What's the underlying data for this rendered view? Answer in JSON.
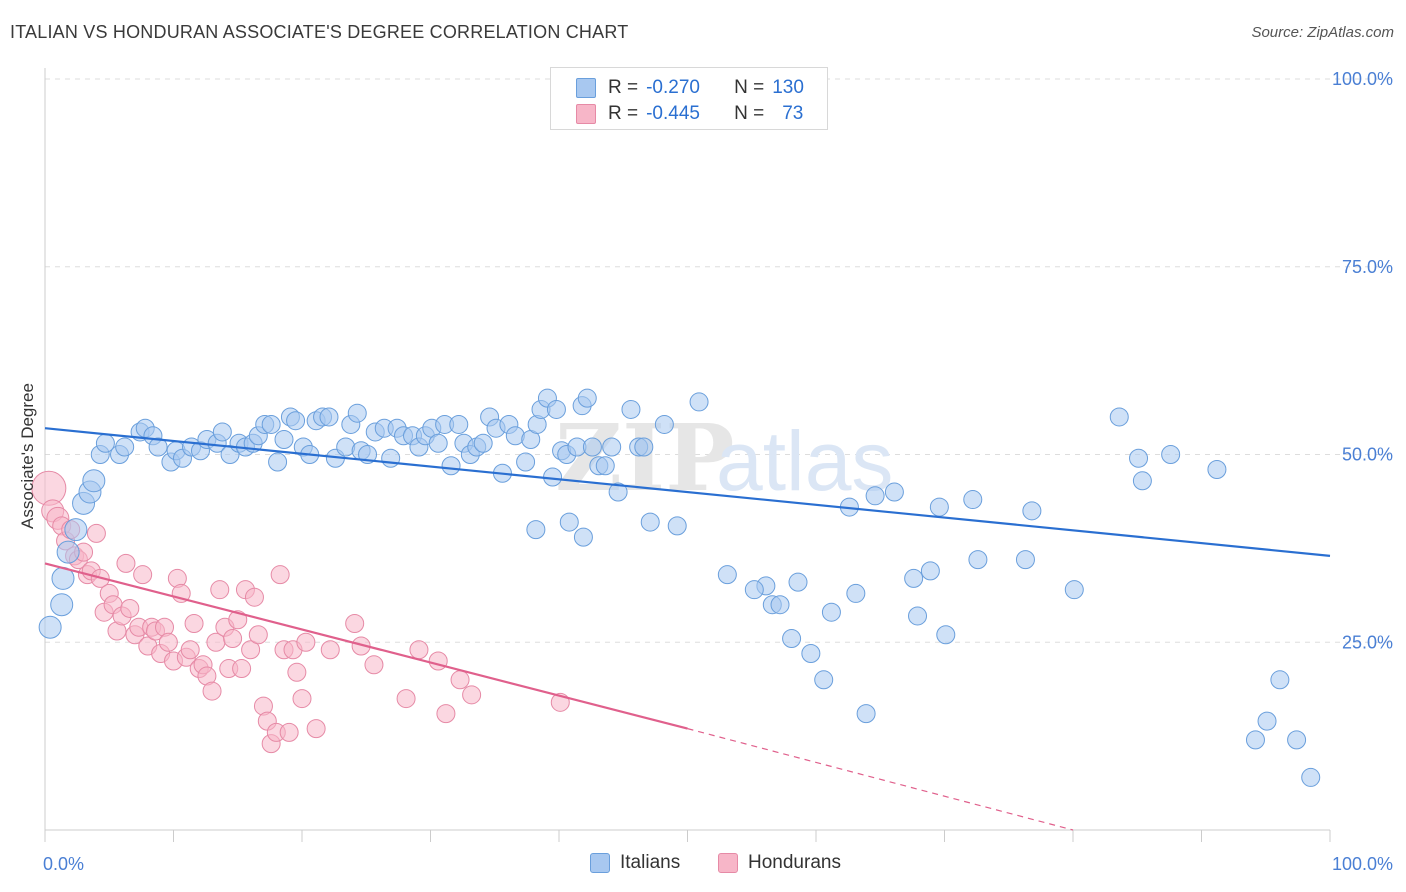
{
  "title": "ITALIAN VS HONDURAN ASSOCIATE'S DEGREE CORRELATION CHART",
  "source": "Source: ZipAtlas.com",
  "watermark": {
    "zip": "ZIP",
    "atlas": "atlas"
  },
  "colors": {
    "italians_fill": "#a8c8f0",
    "italians_stroke": "#6a9fdc",
    "italians_line": "#2a6fd1",
    "hondurans_fill": "#f7b6c8",
    "hondurans_stroke": "#e68aa6",
    "hondurans_line": "#e0608c",
    "tick_text": "#4a7fd4",
    "grid": "#dddddd"
  },
  "legend_top": [
    {
      "r_label": "R =",
      "r_value": "-0.270",
      "n_label": "N =",
      "n_value": "130"
    },
    {
      "r_label": "R =",
      "r_value": "-0.445",
      "n_label": "N =",
      "n_value": "73"
    }
  ],
  "legend_bottom": [
    "Italians",
    "Hondurans"
  ],
  "chart_data": {
    "type": "scatter",
    "title": "ITALIAN VS HONDURAN ASSOCIATE'S DEGREE CORRELATION CHART",
    "xlabel": "",
    "ylabel": "Associate's Degree",
    "xlim": [
      0,
      100
    ],
    "ylim": [
      0,
      100
    ],
    "x_tick_labels": [
      "0.0%",
      "100.0%"
    ],
    "y_tick_labels": [
      "25.0%",
      "50.0%",
      "75.0%",
      "100.0%"
    ],
    "y_ticks": [
      25,
      50,
      75,
      100
    ],
    "grid": true,
    "legend_position": "top-center",
    "series": [
      {
        "name": "Italians",
        "r": -0.27,
        "n": 130,
        "trend": {
          "x0": 0,
          "y0": 53.5,
          "x1": 100,
          "y1": 36.5
        },
        "points": [
          [
            0.4,
            27
          ],
          [
            1.3,
            30
          ],
          [
            1.4,
            33.5
          ],
          [
            1.8,
            37
          ],
          [
            2.4,
            40
          ],
          [
            3,
            43.5
          ],
          [
            3.5,
            45
          ],
          [
            3.8,
            46.5
          ],
          [
            4.3,
            50
          ],
          [
            4.7,
            51.5
          ],
          [
            5.8,
            50
          ],
          [
            6.2,
            51
          ],
          [
            7.4,
            53
          ],
          [
            7.8,
            53.5
          ],
          [
            8.4,
            52.5
          ],
          [
            8.8,
            51
          ],
          [
            9.8,
            49
          ],
          [
            10.2,
            50.5
          ],
          [
            10.7,
            49.5
          ],
          [
            11.4,
            51
          ],
          [
            12.1,
            50.5
          ],
          [
            12.6,
            52
          ],
          [
            13.4,
            51.5
          ],
          [
            13.8,
            53
          ],
          [
            14.4,
            50
          ],
          [
            15.1,
            51.5
          ],
          [
            15.6,
            51
          ],
          [
            16.2,
            51.5
          ],
          [
            16.6,
            52.5
          ],
          [
            17.1,
            54
          ],
          [
            17.6,
            54
          ],
          [
            18.1,
            49
          ],
          [
            18.6,
            52
          ],
          [
            19.1,
            55
          ],
          [
            19.5,
            54.5
          ],
          [
            20.1,
            51
          ],
          [
            20.6,
            50
          ],
          [
            21.1,
            54.5
          ],
          [
            21.6,
            55
          ],
          [
            22.1,
            55
          ],
          [
            22.6,
            49.5
          ],
          [
            23.4,
            51
          ],
          [
            23.8,
            54
          ],
          [
            24.3,
            55.5
          ],
          [
            24.6,
            50.5
          ],
          [
            25.1,
            50
          ],
          [
            25.7,
            53
          ],
          [
            26.4,
            53.5
          ],
          [
            26.9,
            49.5
          ],
          [
            27.4,
            53.5
          ],
          [
            27.9,
            52.5
          ],
          [
            28.6,
            52.5
          ],
          [
            29.1,
            51
          ],
          [
            29.6,
            52.5
          ],
          [
            30.1,
            53.5
          ],
          [
            30.6,
            51.5
          ],
          [
            31.1,
            54
          ],
          [
            31.6,
            48.5
          ],
          [
            32.2,
            54
          ],
          [
            32.6,
            51.5
          ],
          [
            33.1,
            50
          ],
          [
            33.6,
            51
          ],
          [
            34.1,
            51.5
          ],
          [
            34.6,
            55
          ],
          [
            35.1,
            53.5
          ],
          [
            35.6,
            47.5
          ],
          [
            36.1,
            54
          ],
          [
            36.6,
            52.5
          ],
          [
            37.4,
            49
          ],
          [
            37.8,
            52
          ],
          [
            38.3,
            54
          ],
          [
            38.6,
            56
          ],
          [
            39.1,
            57.5
          ],
          [
            39.5,
            47
          ],
          [
            39.8,
            56
          ],
          [
            40.2,
            50.5
          ],
          [
            40.6,
            50
          ],
          [
            41.4,
            51
          ],
          [
            41.8,
            56.5
          ],
          [
            42.2,
            57.5
          ],
          [
            42.6,
            51
          ],
          [
            43.1,
            48.5
          ],
          [
            43.6,
            48.5
          ],
          [
            44.1,
            51
          ],
          [
            44.6,
            45
          ],
          [
            45.6,
            56
          ],
          [
            46.2,
            51
          ],
          [
            46.6,
            51
          ],
          [
            47.1,
            41
          ],
          [
            48.2,
            54
          ],
          [
            49.2,
            40.5
          ],
          [
            50.9,
            57
          ],
          [
            38.2,
            40
          ],
          [
            40.8,
            41
          ],
          [
            41.9,
            39
          ],
          [
            56.1,
            32.5
          ],
          [
            56.6,
            30
          ],
          [
            57.2,
            30
          ],
          [
            58.1,
            25.5
          ],
          [
            59.6,
            23.5
          ],
          [
            60.6,
            20
          ],
          [
            63.1,
            31.5
          ],
          [
            63.9,
            15.5
          ],
          [
            67.6,
            33.5
          ],
          [
            67.9,
            28.5
          ],
          [
            68.9,
            34.5
          ],
          [
            70.1,
            26
          ],
          [
            72.6,
            36
          ],
          [
            76.3,
            36
          ],
          [
            72.2,
            44
          ],
          [
            76.8,
            42.5
          ],
          [
            80.1,
            32
          ],
          [
            83.6,
            55
          ],
          [
            85.1,
            49.5
          ],
          [
            85.4,
            46.5
          ],
          [
            87.6,
            50
          ],
          [
            91.2,
            48
          ],
          [
            95.1,
            14.5
          ],
          [
            96.1,
            20
          ],
          [
            97.4,
            12
          ],
          [
            98.5,
            7
          ],
          [
            94.2,
            12
          ],
          [
            53.1,
            34
          ],
          [
            55.2,
            32
          ],
          [
            58.6,
            33
          ],
          [
            61.2,
            29
          ],
          [
            62.6,
            43
          ],
          [
            64.6,
            44.5
          ],
          [
            66.1,
            45
          ],
          [
            69.6,
            43
          ]
        ]
      },
      {
        "name": "Hondurans",
        "r": -0.445,
        "n": 73,
        "trend": {
          "x0": 0,
          "y0": 35.5,
          "x1": 50,
          "y1": 13.5,
          "dash_to": {
            "x": 80,
            "y": 0
          }
        },
        "points": [
          [
            0.3,
            45.5
          ],
          [
            0.6,
            42.5
          ],
          [
            1,
            41.5
          ],
          [
            1.3,
            40.5
          ],
          [
            1.6,
            38.5
          ],
          [
            2,
            40
          ],
          [
            2.3,
            36.5
          ],
          [
            2.6,
            36
          ],
          [
            3,
            37
          ],
          [
            3.3,
            34
          ],
          [
            3.6,
            34.5
          ],
          [
            4,
            39.5
          ],
          [
            4.3,
            33.5
          ],
          [
            4.6,
            29
          ],
          [
            5,
            31.5
          ],
          [
            5.3,
            30
          ],
          [
            5.6,
            26.5
          ],
          [
            6,
            28.5
          ],
          [
            6.3,
            35.5
          ],
          [
            6.6,
            29.5
          ],
          [
            7,
            26
          ],
          [
            7.3,
            27
          ],
          [
            7.6,
            34
          ],
          [
            8,
            24.5
          ],
          [
            8.3,
            27
          ],
          [
            8.6,
            26.5
          ],
          [
            9,
            23.5
          ],
          [
            9.3,
            27
          ],
          [
            9.6,
            25
          ],
          [
            10,
            22.5
          ],
          [
            10.3,
            33.5
          ],
          [
            10.6,
            31.5
          ],
          [
            11,
            23
          ],
          [
            11.3,
            24
          ],
          [
            11.6,
            27.5
          ],
          [
            12,
            21.5
          ],
          [
            12.3,
            22
          ],
          [
            12.6,
            20.5
          ],
          [
            13,
            18.5
          ],
          [
            13.3,
            25
          ],
          [
            13.6,
            32
          ],
          [
            14,
            27
          ],
          [
            14.3,
            21.5
          ],
          [
            14.6,
            25.5
          ],
          [
            15,
            28
          ],
          [
            15.3,
            21.5
          ],
          [
            15.6,
            32
          ],
          [
            16,
            24
          ],
          [
            16.3,
            31
          ],
          [
            16.6,
            26
          ],
          [
            17,
            16.5
          ],
          [
            17.3,
            14.5
          ],
          [
            17.6,
            11.5
          ],
          [
            18,
            13
          ],
          [
            18.3,
            34
          ],
          [
            18.6,
            24
          ],
          [
            19,
            13
          ],
          [
            19.3,
            24
          ],
          [
            19.6,
            21
          ],
          [
            20,
            17.5
          ],
          [
            20.3,
            25
          ],
          [
            21.1,
            13.5
          ],
          [
            22.2,
            24
          ],
          [
            24.1,
            27.5
          ],
          [
            24.6,
            24.5
          ],
          [
            25.6,
            22
          ],
          [
            28.1,
            17.5
          ],
          [
            29.1,
            24
          ],
          [
            30.6,
            22.5
          ],
          [
            31.2,
            15.5
          ],
          [
            32.3,
            20
          ],
          [
            33.2,
            18
          ],
          [
            40.1,
            17
          ]
        ]
      }
    ]
  }
}
